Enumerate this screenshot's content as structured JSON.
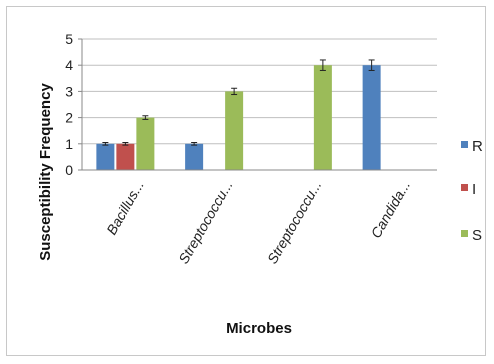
{
  "chart_data": {
    "type": "bar",
    "title": "",
    "xlabel": "Microbes",
    "ylabel": "Susceptibility Frequency",
    "ylim": [
      0,
      5
    ],
    "yticks": [
      0,
      1,
      2,
      3,
      4,
      5
    ],
    "grid": true,
    "legend": "right",
    "categories": [
      "Bacillus...",
      "Streptococcu...",
      "Streptococcu...",
      "Candida..."
    ],
    "series": [
      {
        "name": "R",
        "color": "#4f81bd",
        "values": [
          1,
          1,
          null,
          4
        ],
        "errors": [
          0.05,
          0.05,
          null,
          0.2
        ]
      },
      {
        "name": "I",
        "color": "#c0504d",
        "values": [
          1,
          null,
          null,
          null
        ],
        "errors": [
          0.05,
          null,
          null,
          null
        ]
      },
      {
        "name": "S",
        "color": "#9bbb59",
        "values": [
          2,
          3,
          4,
          null
        ],
        "errors": [
          0.07,
          0.12,
          0.2,
          null
        ]
      }
    ]
  }
}
